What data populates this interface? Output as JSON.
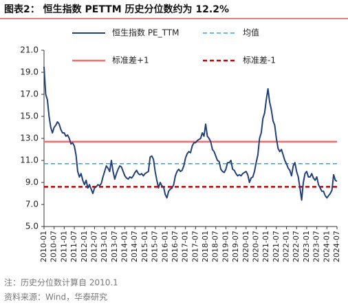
{
  "chart_data": {
    "type": "line",
    "title": "图表2：  恒生指数 PETTM 历史分位数约为 12.2%",
    "notes": [
      "注：历史分位数计算自 2010.1",
      "资料来源：Wind，华泰研究"
    ],
    "x": [
      "2010-01",
      null,
      null,
      null,
      null,
      null,
      "2010-07",
      null,
      null,
      null,
      null,
      null,
      "2011-01",
      null,
      null,
      null,
      null,
      null,
      "2011-07",
      null,
      null,
      null,
      null,
      null,
      "2012-01",
      null,
      null,
      null,
      null,
      null,
      "2012-07",
      null,
      null,
      null,
      null,
      null,
      "2013-01",
      null,
      null,
      null,
      null,
      null,
      "2013-07",
      null,
      null,
      null,
      null,
      null,
      "2014-01",
      null,
      null,
      null,
      null,
      null,
      "2014-07",
      null,
      null,
      null,
      null,
      null,
      "2015-01",
      null,
      null,
      null,
      null,
      null,
      "2015-07",
      null,
      null,
      null,
      null,
      null,
      "2016-01",
      null,
      null,
      null,
      null,
      null,
      "2016-07",
      null,
      null,
      null,
      null,
      null,
      "2017-01",
      null,
      null,
      null,
      null,
      null,
      "2017-07",
      null,
      null,
      null,
      null,
      null,
      "2018-01",
      null,
      null,
      null,
      null,
      null,
      "2018-07",
      null,
      null,
      null,
      null,
      null,
      "2019-01",
      null,
      null,
      null,
      null,
      null,
      "2019-07",
      null,
      null,
      null,
      null,
      null,
      "2020-01",
      null,
      null,
      null,
      null,
      null,
      "2020-07",
      null,
      null,
      null,
      null,
      null,
      "2021-01",
      null,
      null,
      null,
      null,
      null,
      "2021-07",
      null,
      null,
      null,
      null,
      null,
      "2022-01",
      null,
      null,
      null,
      null,
      null,
      "2022-07",
      null,
      null,
      null,
      null,
      null,
      "2023-01",
      null,
      null,
      null,
      null,
      null,
      "2023-07",
      null,
      null,
      null,
      null,
      null,
      "2024-01",
      null,
      null,
      null,
      null,
      null,
      "2024-07"
    ],
    "series": [
      {
        "name": "恒生指数 PE_TTM",
        "color": "#1f3f7a",
        "values": [
          19.5,
          17,
          16.5,
          15,
          14,
          13.5,
          14,
          14.2,
          14.5,
          14.3,
          13.8,
          13.5,
          13.5,
          13.2,
          13.3,
          13,
          12.5,
          12.6,
          12.3,
          11.5,
          10,
          9.5,
          9.8,
          9.2,
          8.8,
          9.2,
          8.5,
          8.8,
          8.4,
          8,
          8.5,
          8.6,
          8.8,
          8.7,
          8.9,
          9.5,
          10,
          10.5,
          10.3,
          10,
          11,
          10,
          9.3,
          9.8,
          10.2,
          10.5,
          10.4,
          10,
          9.6,
          9.4,
          9.3,
          9.5,
          9.4,
          9.6,
          9.9,
          10.1,
          9.8,
          9.7,
          9.8,
          9.6,
          9.8,
          9.9,
          10,
          11.3,
          11.4,
          11.1,
          10,
          9.2,
          8.5,
          9,
          8.7,
          8.6,
          7.9,
          7.6,
          8.2,
          8.4,
          8.5,
          8.8,
          9.6,
          10,
          10.2,
          10,
          10.1,
          10.5,
          11.2,
          11.6,
          11.8,
          11.7,
          12.3,
          12.6,
          12.6,
          12.8,
          12.9,
          13,
          13.5,
          13.2,
          14.3,
          13.2,
          13,
          12.7,
          12,
          11.8,
          11.4,
          11,
          10.9,
          10.2,
          10,
          9.9,
          10.2,
          10.8,
          10.8,
          11,
          10.2,
          10.1,
          9.8,
          9.6,
          9.7,
          9.6,
          9.8,
          9.9,
          10,
          9.7,
          9,
          9.4,
          9.5,
          10,
          10.8,
          11.5,
          13,
          13.5,
          14.8,
          15.3,
          16.5,
          17.5,
          16.3,
          15.6,
          14.6,
          14.2,
          13,
          12.1,
          11.8,
          12,
          11.5,
          11,
          10.7,
          10.3,
          10.1,
          9.6,
          10.5,
          10.8,
          10,
          9.5,
          8.5,
          7.4,
          9,
          9.8,
          10,
          9.5,
          9.5,
          9.8,
          9.4,
          9.2,
          9.5,
          8.8,
          8.5,
          8.2,
          8.2,
          7.8,
          7.6,
          7.8,
          8,
          8.3,
          9.7,
          9.2,
          9.1
        ]
      }
    ],
    "reference_lines": [
      {
        "name": "均值",
        "value": 10.7,
        "color": "#29a8e0",
        "style": "dashed"
      },
      {
        "name": "标准差+1",
        "value": 12.7,
        "color": "#f26d6d",
        "style": "solid"
      },
      {
        "name": "标准差-1",
        "value": 8.6,
        "color": "#c00000",
        "style": "dashed"
      }
    ],
    "ylim": [
      5,
      21
    ],
    "yticks": [
      {
        "value": 5,
        "label": "5.0"
      },
      {
        "value": 7,
        "label": "7.0"
      },
      {
        "value": 9,
        "label": "9.0"
      },
      {
        "value": 11,
        "label": "11.0"
      },
      {
        "value": 13,
        "label": "13.0"
      },
      {
        "value": 15,
        "label": "15.0"
      },
      {
        "value": 17,
        "label": "17.0"
      },
      {
        "value": 19,
        "label": "19.0"
      },
      {
        "value": 21,
        "label": "21.0"
      }
    ],
    "grid": false
  }
}
